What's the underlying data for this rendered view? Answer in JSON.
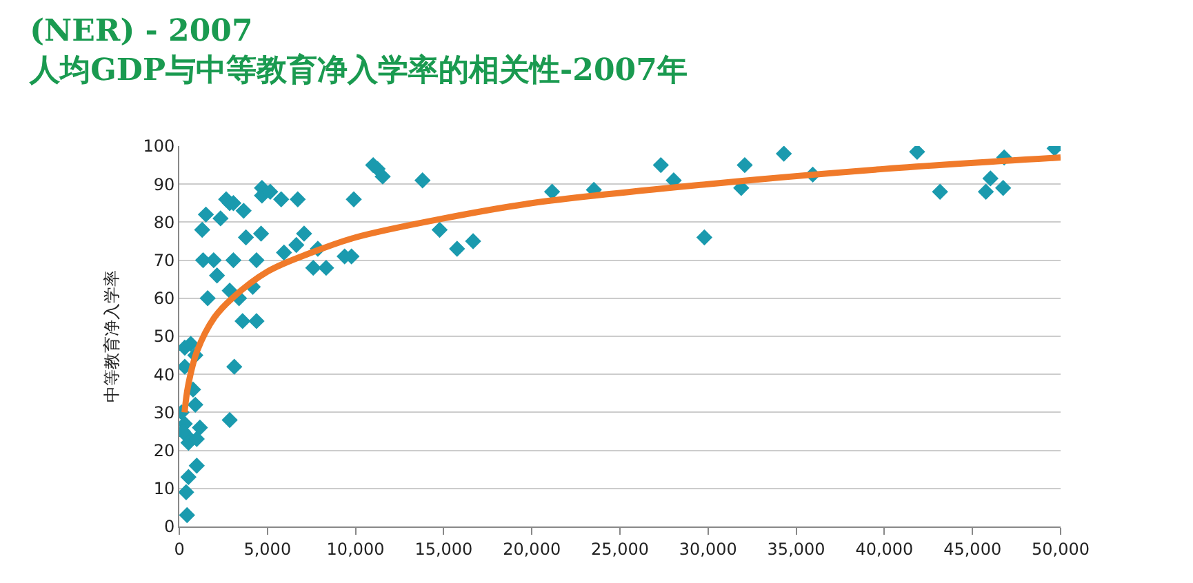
{
  "chart_data": {
    "type": "scatter",
    "title": "(NER) - 2007",
    "subtitle": "人均GDP与中等教育净入学率的相关性-2007年",
    "ylabel": "中等教育净入学率",
    "xlim": [
      0,
      50000
    ],
    "xticks": [
      {
        "value": 0,
        "label": "0"
      },
      {
        "value": 5000,
        "label": "5,000"
      },
      {
        "value": 10000,
        "label": "10,000"
      },
      {
        "value": 15000,
        "label": "15,000"
      },
      {
        "value": 20000,
        "label": "20,000"
      },
      {
        "value": 25000,
        "label": "25,000"
      },
      {
        "value": 30000,
        "label": "30,000"
      },
      {
        "value": 35000,
        "label": "35,000"
      },
      {
        "value": 40000,
        "label": "40,000"
      },
      {
        "value": 45000,
        "label": "45,000"
      },
      {
        "value": 50000,
        "label": "50,000"
      }
    ],
    "ylim": [
      0,
      100
    ],
    "yticks": [
      0,
      10,
      20,
      30,
      40,
      50,
      60,
      70,
      80,
      90,
      100
    ],
    "grid": "y",
    "legend": false,
    "marker": "diamond",
    "series": [
      {
        "color": "#1a9aae",
        "x": [
          310,
          650,
          310,
          910,
          130,
          310,
          390,
          210,
          520,
          780,
          910,
          990,
          1170,
          990,
          520,
          390,
          440,
          1300,
          1510,
          1350,
          1950,
          1610,
          2140,
          2340,
          2660,
          2860,
          3070,
          3650,
          3780,
          4640,
          4380,
          3070,
          2860,
          3390,
          4170,
          3590,
          4380,
          3120,
          2860,
          4690,
          4690,
          5160,
          5780,
          6720,
          5940,
          6640,
          7080,
          7860,
          7600,
          8330,
          9380,
          9770,
          9900,
          11000,
          11250,
          11540,
          13800,
          14770,
          15760,
          16670,
          21150,
          23520,
          27320,
          28050,
          29790,
          31880,
          32080,
          34300,
          35940,
          41860,
          43160,
          45760,
          46020,
          46800,
          46740,
          49660
        ],
        "values": [
          47,
          48,
          42,
          45,
          30,
          27,
          24,
          25,
          22,
          36,
          32,
          23,
          26,
          16,
          13,
          9,
          3,
          78,
          82,
          70,
          70,
          60,
          66,
          81,
          86,
          85,
          85,
          83,
          76,
          77,
          70,
          70,
          62,
          60,
          63,
          54,
          54,
          42,
          28,
          89,
          87,
          88,
          86,
          86,
          72,
          74,
          77,
          73,
          68,
          68,
          71,
          71,
          86,
          95,
          94,
          92,
          91,
          78,
          73,
          75,
          88,
          88.5,
          95,
          91,
          76,
          89,
          95,
          98,
          92.5,
          98.5,
          88,
          88,
          91.5,
          97,
          89,
          99.4
        ]
      },
      {
        "type": "line",
        "color": "#f07a2a",
        "marker": "none",
        "x": [
          300,
          500,
          1000,
          2000,
          3000,
          5000,
          7500,
          10000,
          15000,
          20000,
          30000,
          40000,
          50000
        ],
        "values": [
          30,
          37,
          46,
          55,
          60,
          67,
          72,
          76,
          81,
          85,
          90,
          94,
          97
        ]
      }
    ]
  }
}
